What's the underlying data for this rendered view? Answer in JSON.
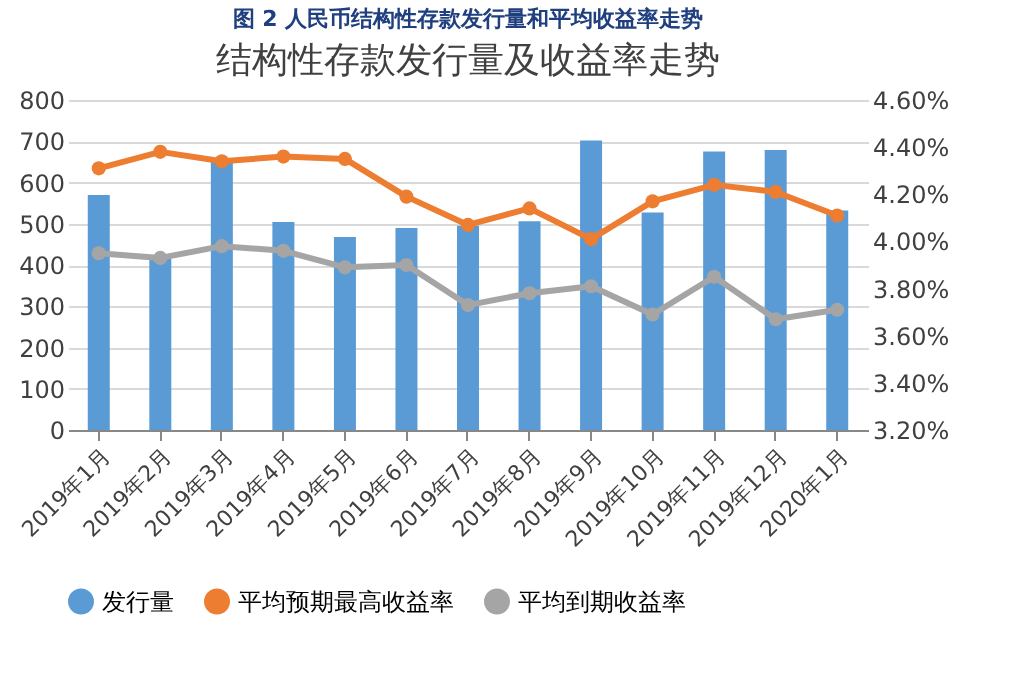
{
  "chart_data": {
    "type": "bar",
    "title": "结构性存款发行量及收益率走势",
    "annotations": [
      "图 2 人民币结构性存款发行量和平均收益率走势"
    ],
    "categories": [
      "2019年1月",
      "2019年2月",
      "2019年3月",
      "2019年4月",
      "2019年5月",
      "2019年6月",
      "2019年7月",
      "2019年8月",
      "2019年9月",
      "2019年10月",
      "2019年11月",
      "2019年12月",
      "2020年1月"
    ],
    "series": [
      {
        "name": "发行量",
        "color": "#5b9bd5",
        "values": [
          570,
          415,
          652,
          504,
          468,
          490,
          495,
          506,
          702,
          527,
          675,
          679,
          532
        ]
      },
      {
        "name": "平均预期最高收益率",
        "type": "line",
        "axis": "y2",
        "color": "#ed7d31",
        "values": [
          4.31,
          4.38,
          4.34,
          4.36,
          4.35,
          4.19,
          4.07,
          4.14,
          4.01,
          4.17,
          4.24,
          4.21,
          4.11
        ]
      },
      {
        "name": "平均到期收益率",
        "type": "line",
        "axis": "y2",
        "color": "#a5a5a5",
        "values": [
          3.95,
          3.93,
          3.98,
          3.96,
          3.89,
          3.9,
          3.73,
          3.78,
          3.81,
          3.69,
          3.85,
          3.67,
          3.71
        ]
      }
    ],
    "ylim": [
      0,
      800
    ],
    "yticks": [
      0,
      100,
      200,
      300,
      400,
      500,
      600,
      700,
      800
    ],
    "y2lim": [
      3.2,
      4.6
    ],
    "y2ticks": [
      {
        "value": 3.2,
        "label": "3.20%"
      },
      {
        "value": 3.4,
        "label": "3.40%"
      },
      {
        "value": 3.6,
        "label": "3.60%"
      },
      {
        "value": 3.8,
        "label": "3.80%"
      },
      {
        "value": 4.0,
        "label": "4.00%"
      },
      {
        "value": 4.2,
        "label": "4.20%"
      },
      {
        "value": 4.4,
        "label": "4.40%"
      },
      {
        "value": 4.6,
        "label": "4.60%"
      }
    ],
    "grid": "y",
    "legend": "bottom",
    "marker": "circle",
    "line_style": "solid"
  }
}
